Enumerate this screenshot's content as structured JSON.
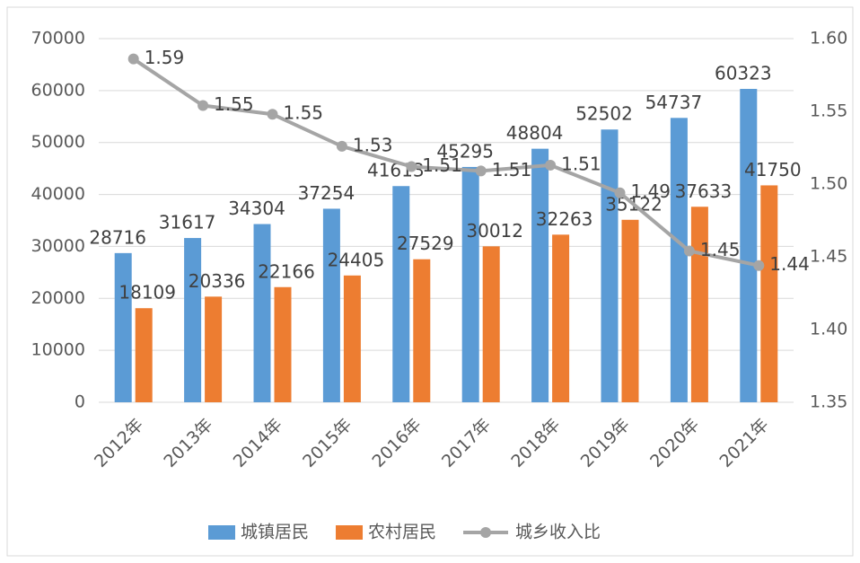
{
  "chart_data": {
    "type": "bar",
    "categories": [
      "2012年",
      "2013年",
      "2014年",
      "2015年",
      "2016年",
      "2017年",
      "2018年",
      "2019年",
      "2020年",
      "2021年"
    ],
    "series": [
      {
        "name": "城镇居民",
        "color": "#5b9bd5",
        "values": [
          28716,
          31617,
          34304,
          37254,
          41613,
          45295,
          48804,
          52502,
          54737,
          60323
        ]
      },
      {
        "name": "农村居民",
        "color": "#ed7d31",
        "values": [
          18109,
          20336,
          22166,
          24405,
          27529,
          30012,
          32263,
          35122,
          37633,
          41750
        ]
      },
      {
        "name": "城乡收入比",
        "color": "#a5a5a5",
        "type": "line",
        "axis": "y2",
        "values": [
          1.586,
          1.554,
          1.548,
          1.526,
          1.512,
          1.509,
          1.513,
          1.494,
          1.454,
          1.444
        ],
        "value_labels": [
          "1.59",
          "1.55",
          "1.55",
          "1.53",
          "1.51",
          "1.51",
          "1.51",
          "1.49",
          "1.45",
          "1.44"
        ]
      }
    ],
    "ylim": [
      0,
      70000
    ],
    "yticks": [
      0,
      10000,
      20000,
      30000,
      40000,
      50000,
      60000,
      70000
    ],
    "y2lim": [
      1.35,
      1.6
    ],
    "y2ticks": [
      1.35,
      {
        "value": 1.4,
        "label": "1.40"
      },
      1.45,
      {
        "value": 1.5,
        "label": "1.50"
      },
      1.55,
      {
        "value": 1.6,
        "label": "1.60"
      }
    ],
    "grid": true,
    "legend": "bottom"
  }
}
